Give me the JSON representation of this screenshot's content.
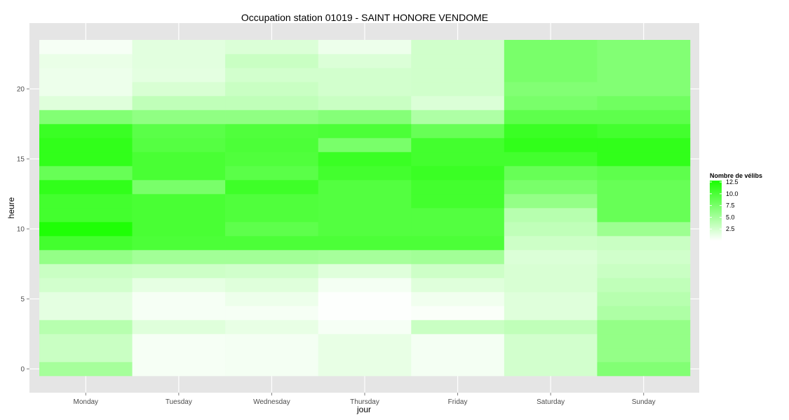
{
  "chart_data": {
    "type": "heatmap",
    "title": "Occupation station 01019 - SAINT HONORE VENDOME",
    "xlabel": "jour",
    "ylabel": "heure",
    "x_categories": [
      "Monday",
      "Tuesday",
      "Wednesday",
      "Thursday",
      "Friday",
      "Saturday",
      "Sunday"
    ],
    "y_ticks": [
      0,
      5,
      10,
      15,
      20
    ],
    "y_range": [
      -0.5,
      23.5
    ],
    "rows": [
      {
        "hour": 0,
        "values": [
          5.0,
          0.5,
          0.6,
          1.3,
          0.6,
          2.5,
          7.0
        ]
      },
      {
        "hour": 1,
        "values": [
          3.0,
          0.5,
          0.6,
          1.3,
          0.6,
          2.5,
          6.0
        ]
      },
      {
        "hour": 2,
        "values": [
          3.0,
          0.5,
          0.6,
          1.3,
          0.6,
          2.5,
          6.0
        ]
      },
      {
        "hour": 3,
        "values": [
          4.0,
          1.8,
          1.3,
          0.5,
          3.0,
          3.5,
          6.0
        ]
      },
      {
        "hour": 4,
        "values": [
          1.5,
          0.5,
          0.5,
          0.1,
          0.3,
          1.8,
          4.5
        ]
      },
      {
        "hour": 5,
        "values": [
          1.5,
          0.5,
          1.0,
          0.1,
          0.8,
          1.8,
          4.0
        ]
      },
      {
        "hour": 6,
        "values": [
          2.5,
          1.4,
          1.8,
          0.6,
          1.8,
          2.2,
          3.5
        ]
      },
      {
        "hour": 7,
        "values": [
          3.0,
          2.8,
          2.6,
          1.8,
          2.8,
          2.2,
          3.0
        ]
      },
      {
        "hour": 8,
        "values": [
          6.0,
          5.2,
          5.2,
          5.0,
          5.2,
          2.0,
          2.6
        ]
      },
      {
        "hour": 9,
        "values": [
          10.5,
          10.0,
          10.0,
          10.0,
          10.0,
          2.8,
          3.0
        ]
      },
      {
        "hour": 10,
        "values": [
          12.5,
          10.2,
          9.0,
          9.6,
          9.6,
          3.5,
          5.5
        ]
      },
      {
        "hour": 11,
        "values": [
          10.5,
          10.2,
          9.8,
          9.6,
          9.6,
          4.0,
          8.5
        ]
      },
      {
        "hour": 12,
        "values": [
          10.5,
          10.2,
          9.8,
          9.6,
          10.5,
          6.0,
          8.5
        ]
      },
      {
        "hour": 13,
        "values": [
          11.5,
          7.5,
          10.8,
          9.6,
          10.5,
          7.5,
          8.5
        ]
      },
      {
        "hour": 14,
        "values": [
          8.5,
          10.2,
          9.2,
          10.5,
          11.0,
          8.5,
          9.0
        ]
      },
      {
        "hour": 15,
        "values": [
          11.5,
          10.2,
          9.8,
          11.0,
          10.5,
          10.5,
          11.5
        ]
      },
      {
        "hour": 16,
        "values": [
          11.5,
          9.5,
          10.0,
          7.5,
          10.5,
          11.5,
          11.5
        ]
      },
      {
        "hour": 17,
        "values": [
          11.0,
          9.2,
          9.8,
          10.0,
          8.5,
          11.0,
          10.5
        ]
      },
      {
        "hour": 18,
        "values": [
          7.0,
          6.2,
          6.2,
          6.8,
          4.5,
          9.0,
          9.0
        ]
      },
      {
        "hour": 19,
        "values": [
          1.8,
          3.5,
          3.5,
          3.0,
          2.0,
          7.5,
          8.0
        ]
      },
      {
        "hour": 20,
        "values": [
          1.0,
          2.2,
          3.0,
          2.5,
          2.6,
          7.0,
          7.0
        ]
      },
      {
        "hour": 21,
        "values": [
          1.0,
          1.5,
          2.5,
          2.5,
          2.6,
          7.5,
          7.0
        ]
      },
      {
        "hour": 22,
        "values": [
          1.2,
          1.6,
          3.0,
          2.0,
          2.6,
          7.5,
          7.0
        ]
      },
      {
        "hour": 23,
        "values": [
          0.5,
          1.6,
          2.0,
          1.0,
          2.6,
          7.5,
          7.0
        ]
      }
    ],
    "legend": {
      "title": "Nombre de vélibs",
      "labels": [
        "12.5",
        "10.0",
        "7.5",
        "5.0",
        "2.5"
      ],
      "values": [
        12.5,
        10.0,
        7.5,
        5.0,
        2.5
      ],
      "placement": "right"
    },
    "value_range": [
      0,
      12.8
    ],
    "colors": {
      "low": "#ffffff",
      "high": "#1aff00",
      "panel_background": "#e5e5e5",
      "gridline": "#ffffff"
    },
    "grid": true
  }
}
